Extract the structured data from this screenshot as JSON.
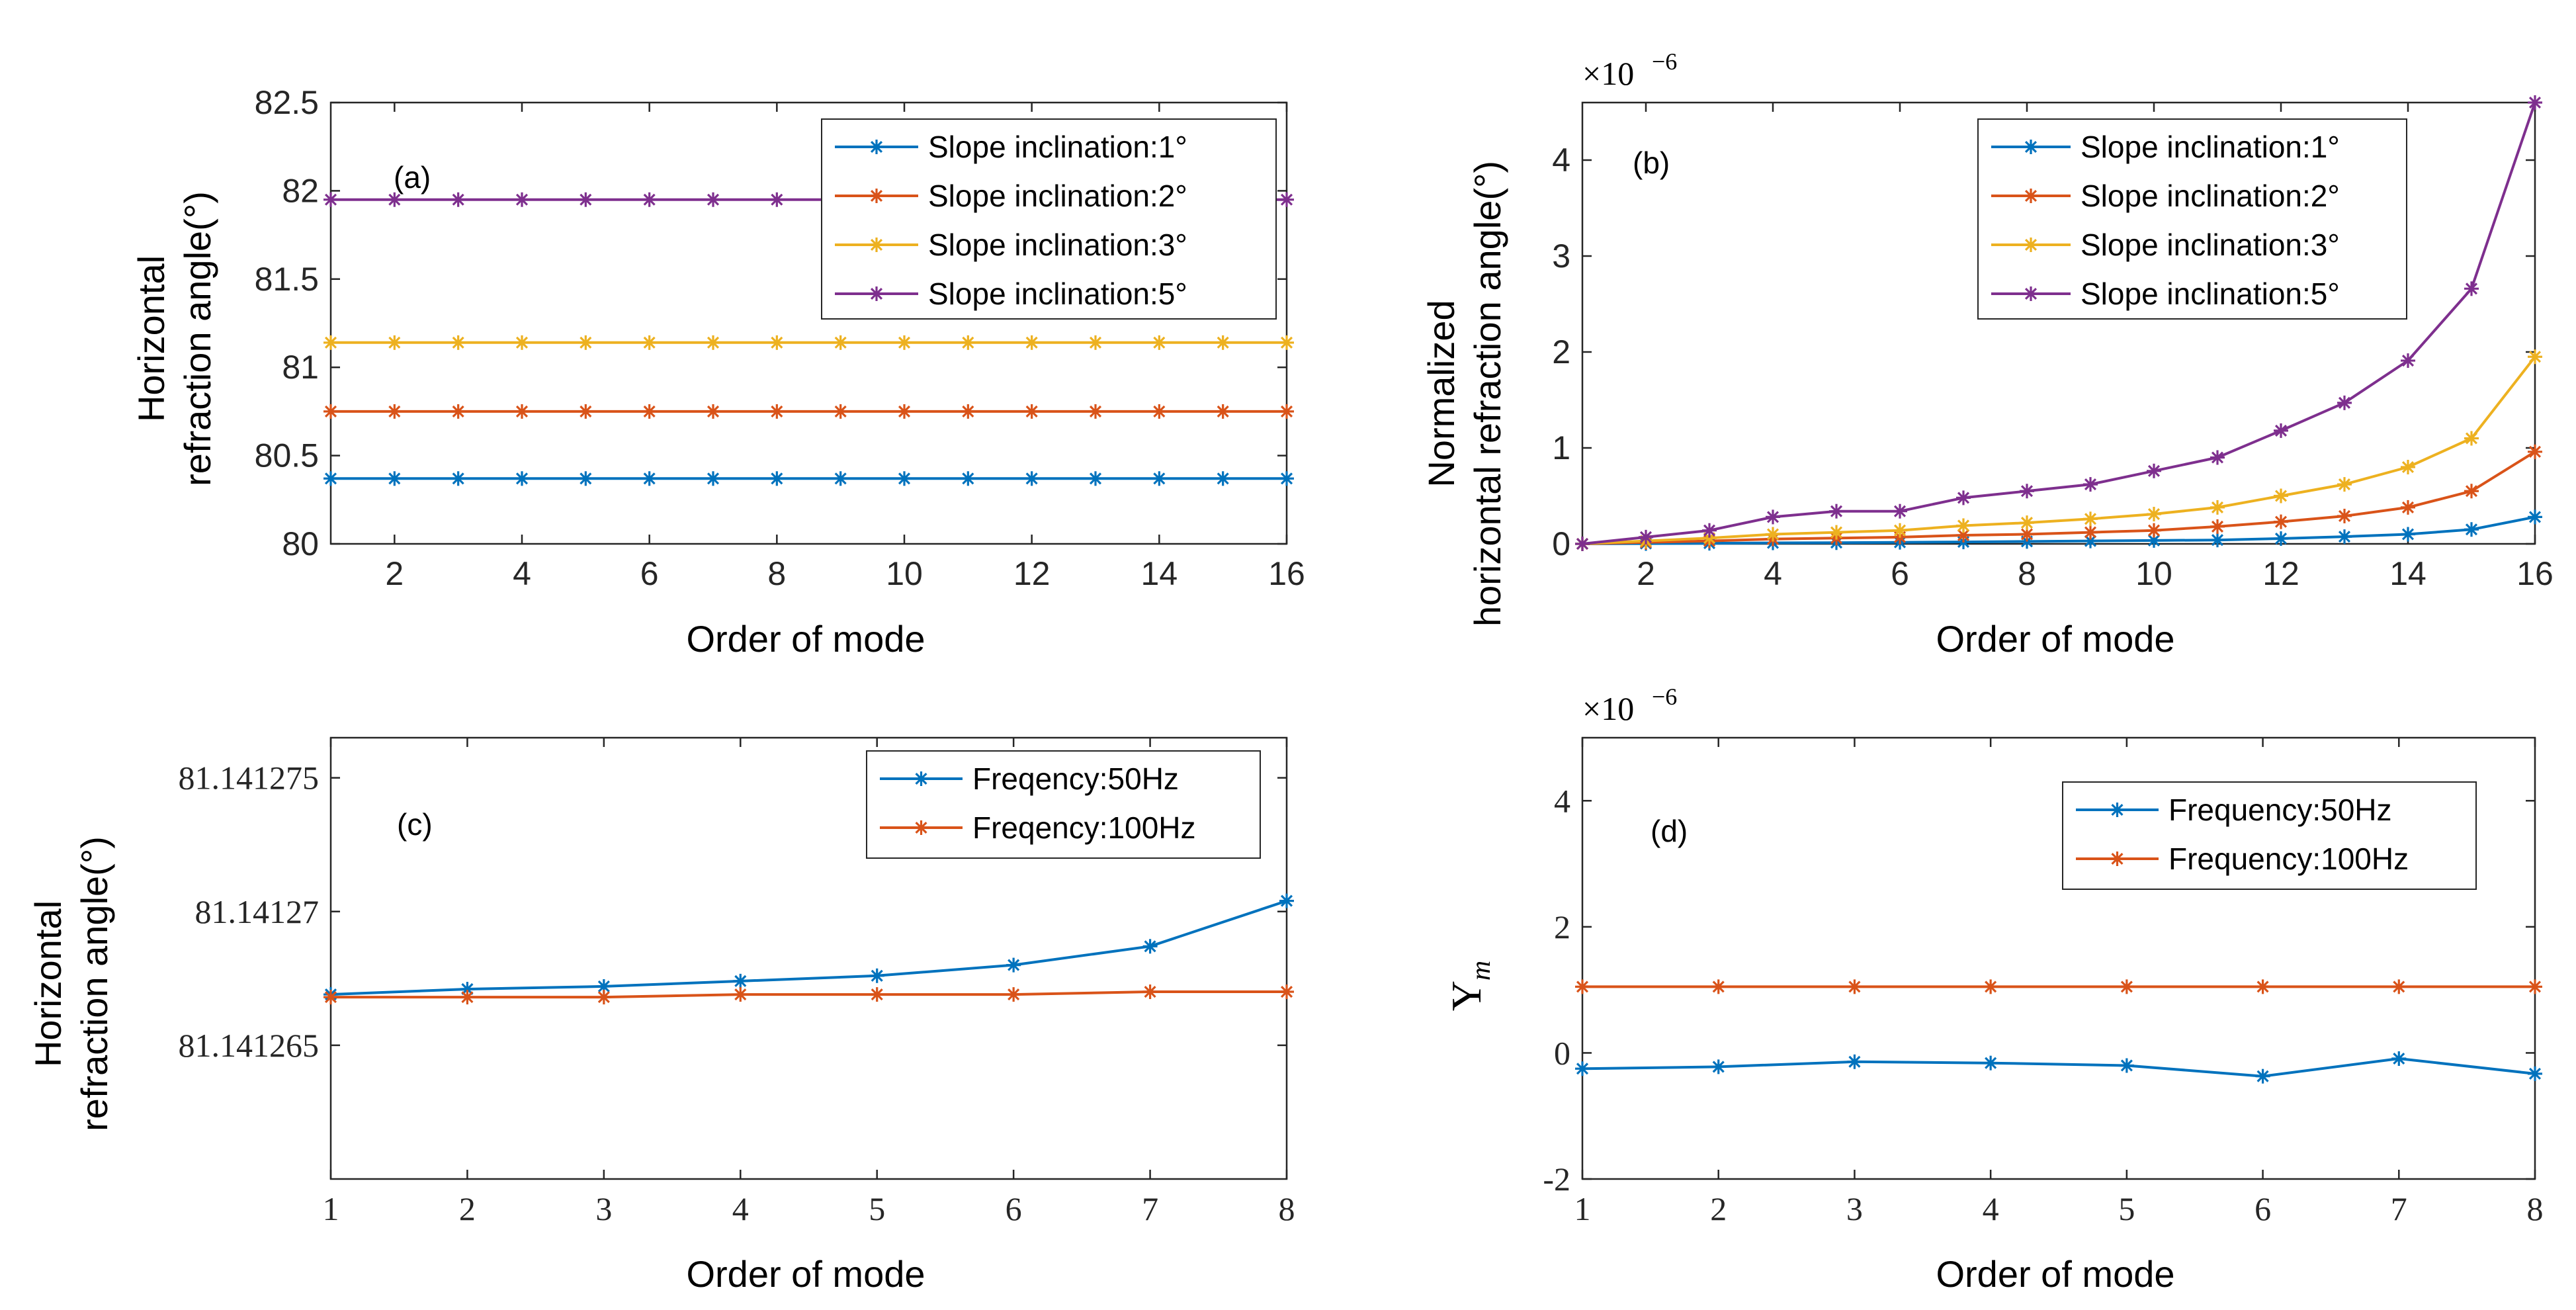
{
  "colors": {
    "blue": "#0072BD",
    "orange": "#D95319",
    "yellow": "#EDB120",
    "purple": "#7E2F8E",
    "axis": "#262626",
    "legend_border": "#262626"
  },
  "chart_data": [
    {
      "id": "a",
      "type": "line",
      "panel_label": "(a)",
      "xlabel": "Order of mode",
      "ylabel_lines": [
        "Horizontal",
        "refraction angle(°)"
      ],
      "xlim": [
        1,
        16
      ],
      "ylim": [
        80,
        82.5
      ],
      "xticks": [
        2,
        4,
        6,
        8,
        10,
        12,
        14,
        16
      ],
      "yticks": [
        80,
        80.5,
        81,
        81.5,
        82,
        82.5
      ],
      "ytick_labels": [
        "80",
        "80.5",
        "81",
        "81.5",
        "82",
        "82.5"
      ],
      "exponent_label": null,
      "legend_position": "top-right",
      "x": [
        1,
        2,
        3,
        4,
        5,
        6,
        7,
        8,
        9,
        10,
        11,
        12,
        13,
        14,
        15,
        16
      ],
      "series": [
        {
          "name": "Slope inclination:1°",
          "color": "#0072BD",
          "values": [
            80.37,
            80.37,
            80.37,
            80.37,
            80.37,
            80.37,
            80.37,
            80.37,
            80.37,
            80.37,
            80.37,
            80.37,
            80.37,
            80.37,
            80.37,
            80.37
          ]
        },
        {
          "name": "Slope inclination:2°",
          "color": "#D95319",
          "values": [
            80.75,
            80.75,
            80.75,
            80.75,
            80.75,
            80.75,
            80.75,
            80.75,
            80.75,
            80.75,
            80.75,
            80.75,
            80.75,
            80.75,
            80.75,
            80.75
          ]
        },
        {
          "name": "Slope inclination:3°",
          "color": "#EDB120",
          "values": [
            81.14,
            81.14,
            81.14,
            81.14,
            81.14,
            81.14,
            81.14,
            81.14,
            81.14,
            81.14,
            81.14,
            81.14,
            81.14,
            81.14,
            81.14,
            81.14
          ]
        },
        {
          "name": "Slope inclination:5°",
          "color": "#7E2F8E",
          "values": [
            81.95,
            81.95,
            81.95,
            81.95,
            81.95,
            81.95,
            81.95,
            81.95,
            81.95,
            81.95,
            81.95,
            81.95,
            81.95,
            81.95,
            81.95,
            81.95
          ]
        }
      ]
    },
    {
      "id": "b",
      "type": "line",
      "panel_label": "(b)",
      "xlabel": "Order of mode",
      "ylabel_lines": [
        "Normalized",
        "horizontal refraction angle(°)"
      ],
      "xlim": [
        1,
        16
      ],
      "ylim": [
        0,
        4.6
      ],
      "xticks": [
        2,
        4,
        6,
        8,
        10,
        12,
        14,
        16
      ],
      "yticks": [
        0,
        1,
        2,
        3,
        4
      ],
      "ytick_labels": [
        "0",
        "1",
        "2",
        "3",
        "4"
      ],
      "exponent_label": "×10",
      "exponent_power": "−6",
      "legend_position": "top-left",
      "x": [
        1,
        2,
        3,
        4,
        5,
        6,
        7,
        8,
        9,
        10,
        11,
        12,
        13,
        14,
        15,
        16
      ],
      "series": [
        {
          "name": "Slope inclination:1°",
          "color": "#0072BD",
          "values": [
            0,
            0.003,
            0.006,
            0.01,
            0.012,
            0.016,
            0.02,
            0.025,
            0.03,
            0.035,
            0.04,
            0.055,
            0.075,
            0.1,
            0.15,
            0.28
          ]
        },
        {
          "name": "Slope inclination:2°",
          "color": "#D95319",
          "values": [
            0,
            0.015,
            0.03,
            0.05,
            0.06,
            0.07,
            0.09,
            0.1,
            0.12,
            0.14,
            0.18,
            0.23,
            0.29,
            0.38,
            0.55,
            0.96
          ]
        },
        {
          "name": "Slope inclination:3°",
          "color": "#EDB120",
          "values": [
            0,
            0.03,
            0.06,
            0.1,
            0.12,
            0.14,
            0.19,
            0.22,
            0.26,
            0.31,
            0.38,
            0.5,
            0.62,
            0.8,
            1.1,
            1.95
          ]
        },
        {
          "name": "Slope inclination:5°",
          "color": "#7E2F8E",
          "values": [
            0,
            0.07,
            0.14,
            0.28,
            0.34,
            0.34,
            0.48,
            0.55,
            0.62,
            0.76,
            0.9,
            1.18,
            1.47,
            1.91,
            2.66,
            4.6
          ]
        }
      ]
    },
    {
      "id": "c",
      "type": "line",
      "panel_label": "(c)",
      "xlabel": "Order of mode",
      "ylabel_lines": [
        "Horizontal",
        "refraction angle(°)"
      ],
      "xlim": [
        1,
        8
      ],
      "ylim": [
        81.14126,
        81.1412765
      ],
      "xticks": [
        1,
        2,
        3,
        4,
        5,
        6,
        7,
        8
      ],
      "yticks": [
        81.141265,
        81.14127,
        81.141275
      ],
      "ytick_labels": [
        "81.141265",
        "81.14127",
        "81.141275"
      ],
      "exponent_label": null,
      "legend_position": "top-right",
      "x": [
        1,
        2,
        3,
        4,
        5,
        6,
        7,
        8
      ],
      "series": [
        {
          "name": "Freqency:50Hz",
          "color": "#0072BD",
          "values": [
            81.1412669,
            81.1412671,
            81.1412672,
            81.1412674,
            81.1412676,
            81.141268,
            81.1412687,
            81.1412704
          ]
        },
        {
          "name": "Freqency:100Hz",
          "color": "#D95319",
          "values": [
            81.1412668,
            81.1412668,
            81.1412668,
            81.1412669,
            81.1412669,
            81.1412669,
            81.141267,
            81.141267
          ]
        }
      ]
    },
    {
      "id": "d",
      "type": "line",
      "panel_label": "(d)",
      "xlabel": "Order of mode",
      "ylabel_symbol": "Υ",
      "ylabel_sub": "m",
      "xlim": [
        1,
        8
      ],
      "ylim": [
        -2,
        5
      ],
      "xticks": [
        1,
        2,
        3,
        4,
        5,
        6,
        7,
        8
      ],
      "yticks": [
        -2,
        0,
        2,
        4
      ],
      "ytick_labels": [
        "-2",
        "0",
        "2",
        "4"
      ],
      "exponent_label": "×10",
      "exponent_power": "−6",
      "legend_position": "top-right",
      "x": [
        1,
        2,
        3,
        4,
        5,
        6,
        7,
        8
      ],
      "series": [
        {
          "name": "Frequency:50Hz",
          "color": "#0072BD",
          "values": [
            -0.25,
            -0.22,
            -0.14,
            -0.16,
            -0.2,
            -0.37,
            -0.09,
            -0.33
          ]
        },
        {
          "name": "Frequency:100Hz",
          "color": "#D95319",
          "values": [
            1.05,
            1.05,
            1.05,
            1.05,
            1.05,
            1.05,
            1.05,
            1.05
          ]
        }
      ]
    }
  ]
}
